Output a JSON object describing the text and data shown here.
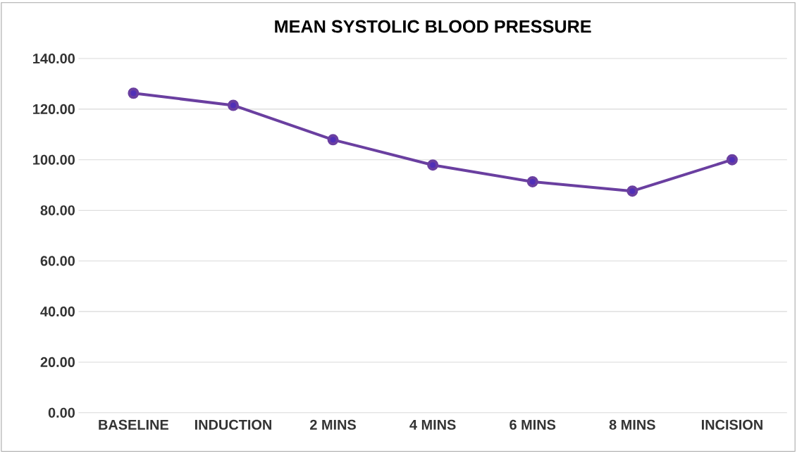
{
  "chart_data": {
    "type": "line",
    "title": "MEAN SYSTOLIC BLOOD PRESSURE",
    "categories": [
      "BASELINE",
      "INDUCTION",
      "2 MINS",
      "4 MINS",
      "6 MINS",
      "8 MINS",
      "INCISION"
    ],
    "series": [
      {
        "color": "#6a3fa0",
        "values": [
          126.3,
          121.5,
          107.9,
          97.9,
          91.3,
          87.6,
          100.0
        ]
      }
    ],
    "ylim": [
      0,
      140
    ],
    "yticks": [
      {
        "value": 0,
        "label": "0.00"
      },
      {
        "value": 20,
        "label": "20.00"
      },
      {
        "value": 40,
        "label": "40.00"
      },
      {
        "value": 60,
        "label": "60.00"
      },
      {
        "value": 80,
        "label": "80.00"
      },
      {
        "value": 100,
        "label": "100.00"
      },
      {
        "value": 120,
        "label": "120.00"
      },
      {
        "value": 140,
        "label": "140.00"
      }
    ],
    "grid": "y",
    "marker": "circle"
  }
}
